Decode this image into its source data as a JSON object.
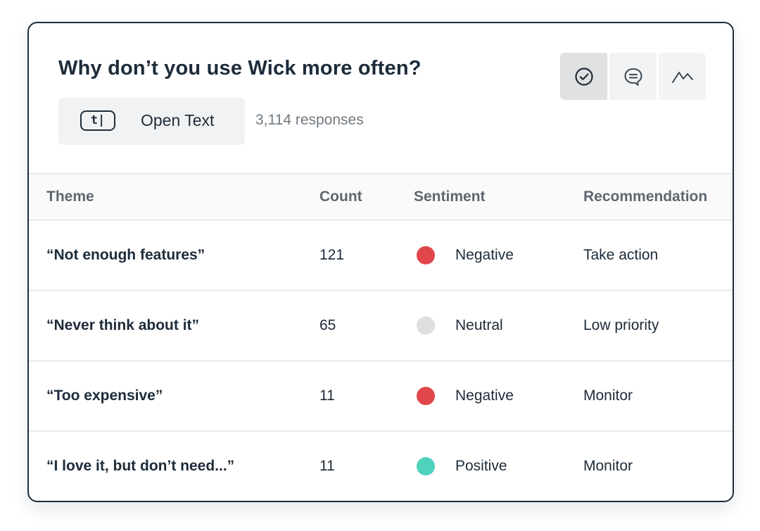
{
  "question": {
    "title": "Why don’t you use Wick more often?",
    "type_icon_text": "t|",
    "type_label": "Open Text",
    "response_count": "3,114 responses"
  },
  "view_toggle": {
    "buttons": [
      {
        "icon": "check-circle-icon",
        "active": true
      },
      {
        "icon": "chat-bubble-icon",
        "active": false
      },
      {
        "icon": "trend-line-icon",
        "active": false
      }
    ]
  },
  "table": {
    "headers": {
      "theme": "Theme",
      "count": "Count",
      "sentiment": "Sentiment",
      "recommendation": "Recommendation"
    },
    "rows": [
      {
        "theme": "“Not enough features”",
        "count": "121",
        "sentiment": "Negative",
        "color": "#e0464b",
        "recommendation": "Take action"
      },
      {
        "theme": "“Never think about it”",
        "count": "65",
        "sentiment": "Neutral",
        "color": "#dedfe1",
        "recommendation": "Low priority"
      },
      {
        "theme": "“Too expensive”",
        "count": "11",
        "sentiment": "Negative",
        "color": "#e0464b",
        "recommendation": "Monitor"
      },
      {
        "theme": "“I love it, but don’t need...”",
        "count": "11",
        "sentiment": "Positive",
        "color": "#4fd1bc",
        "recommendation": "Monitor"
      }
    ]
  },
  "colors": {
    "negative": "#e0464b",
    "neutral": "#dedfe1",
    "positive": "#4fd1bc",
    "text_dark": "#1d2b39",
    "text_muted": "#6f7880"
  }
}
